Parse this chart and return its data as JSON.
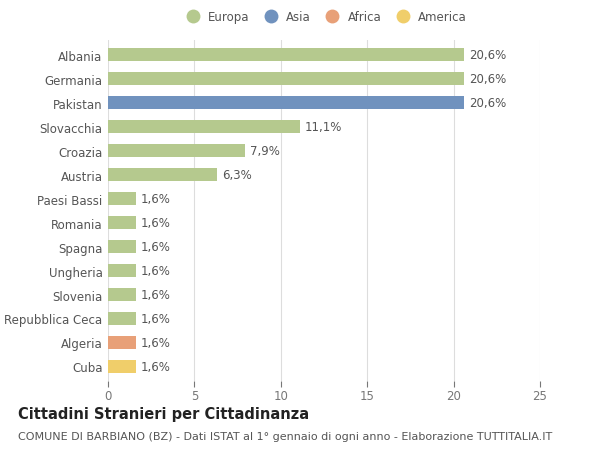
{
  "categories": [
    "Albania",
    "Germania",
    "Pakistan",
    "Slovacchia",
    "Croazia",
    "Austria",
    "Paesi Bassi",
    "Romania",
    "Spagna",
    "Ungheria",
    "Slovenia",
    "Repubblica Ceca",
    "Algeria",
    "Cuba"
  ],
  "values": [
    20.6,
    20.6,
    20.6,
    11.1,
    7.9,
    6.3,
    1.6,
    1.6,
    1.6,
    1.6,
    1.6,
    1.6,
    1.6,
    1.6
  ],
  "labels": [
    "20,6%",
    "20,6%",
    "20,6%",
    "11,1%",
    "7,9%",
    "6,3%",
    "1,6%",
    "1,6%",
    "1,6%",
    "1,6%",
    "1,6%",
    "1,6%",
    "1,6%",
    "1,6%"
  ],
  "colors": [
    "#b5c98e",
    "#b5c98e",
    "#7092be",
    "#b5c98e",
    "#b5c98e",
    "#b5c98e",
    "#b5c98e",
    "#b5c98e",
    "#b5c98e",
    "#b5c98e",
    "#b5c98e",
    "#b5c98e",
    "#e8a078",
    "#f0ce6a"
  ],
  "legend_labels": [
    "Europa",
    "Asia",
    "Africa",
    "America"
  ],
  "legend_colors": [
    "#b5c98e",
    "#7092be",
    "#e8a078",
    "#f0ce6a"
  ],
  "xlim": [
    0,
    25
  ],
  "xticks": [
    0,
    5,
    10,
    15,
    20,
    25
  ],
  "title": "Cittadini Stranieri per Cittadinanza",
  "subtitle": "COMUNE DI BARBIANO (BZ) - Dati ISTAT al 1° gennaio di ogni anno - Elaborazione TUTTITALIA.IT",
  "background_color": "#ffffff",
  "grid_color": "#dddddd",
  "bar_height": 0.55,
  "label_fontsize": 8.5,
  "tick_fontsize": 8.5,
  "title_fontsize": 10.5,
  "subtitle_fontsize": 8.0
}
